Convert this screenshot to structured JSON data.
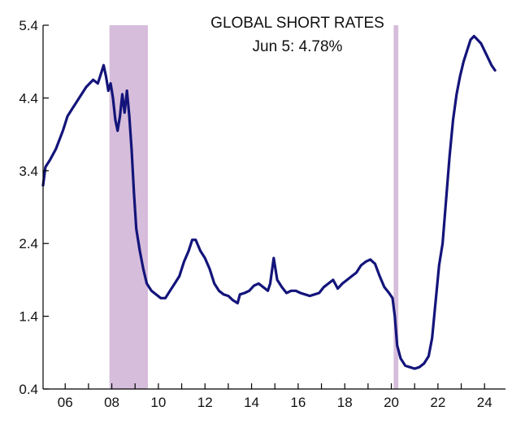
{
  "chart_data": {
    "type": "line",
    "title": "GLOBAL SHORT RATES",
    "subtitle": "Jun 5: 4.78%",
    "xlabel": "",
    "ylabel": "",
    "x_tick_labels": [
      "06",
      "08",
      "10",
      "12",
      "14",
      "16",
      "18",
      "20",
      "22",
      "24"
    ],
    "x_tick_values": [
      2006,
      2008,
      2010,
      2012,
      2014,
      2016,
      2018,
      2020,
      2022,
      2024
    ],
    "y_tick_labels": [
      "0.4",
      "1.4",
      "2.4",
      "3.4",
      "4.4",
      "5.4"
    ],
    "y_tick_values": [
      0.4,
      1.4,
      2.4,
      3.4,
      4.4,
      5.4
    ],
    "xlim": [
      2005.05,
      2024.9
    ],
    "ylim": [
      0.4,
      5.4
    ],
    "grid": false,
    "legend": "none",
    "line_color": "#13147a",
    "recession_color": "#d6bddb",
    "recessions": [
      {
        "start": 2007.9,
        "end": 2009.55
      },
      {
        "start": 2020.1,
        "end": 2020.3
      }
    ],
    "series": [
      {
        "values": [
          [
            2005.05,
            3.2
          ],
          [
            2005.15,
            3.45
          ],
          [
            2005.35,
            3.55
          ],
          [
            2005.6,
            3.7
          ],
          [
            2005.9,
            3.95
          ],
          [
            2006.1,
            4.15
          ],
          [
            2006.3,
            4.25
          ],
          [
            2006.6,
            4.4
          ],
          [
            2006.9,
            4.55
          ],
          [
            2007.2,
            4.65
          ],
          [
            2007.4,
            4.6
          ],
          [
            2007.55,
            4.75
          ],
          [
            2007.65,
            4.85
          ],
          [
            2007.75,
            4.7
          ],
          [
            2007.85,
            4.5
          ],
          [
            2007.95,
            4.6
          ],
          [
            2008.05,
            4.4
          ],
          [
            2008.15,
            4.1
          ],
          [
            2008.25,
            3.95
          ],
          [
            2008.35,
            4.15
          ],
          [
            2008.45,
            4.45
          ],
          [
            2008.55,
            4.2
          ],
          [
            2008.65,
            4.5
          ],
          [
            2008.75,
            4.15
          ],
          [
            2008.85,
            3.7
          ],
          [
            2008.95,
            3.1
          ],
          [
            2009.05,
            2.6
          ],
          [
            2009.2,
            2.3
          ],
          [
            2009.35,
            2.05
          ],
          [
            2009.5,
            1.85
          ],
          [
            2009.7,
            1.75
          ],
          [
            2009.9,
            1.7
          ],
          [
            2010.1,
            1.65
          ],
          [
            2010.3,
            1.65
          ],
          [
            2010.5,
            1.75
          ],
          [
            2010.7,
            1.85
          ],
          [
            2010.9,
            1.95
          ],
          [
            2011.1,
            2.15
          ],
          [
            2011.3,
            2.3
          ],
          [
            2011.45,
            2.45
          ],
          [
            2011.6,
            2.45
          ],
          [
            2011.8,
            2.3
          ],
          [
            2012.0,
            2.2
          ],
          [
            2012.2,
            2.05
          ],
          [
            2012.4,
            1.85
          ],
          [
            2012.6,
            1.75
          ],
          [
            2012.8,
            1.7
          ],
          [
            2013.0,
            1.68
          ],
          [
            2013.2,
            1.62
          ],
          [
            2013.4,
            1.58
          ],
          [
            2013.5,
            1.7
          ],
          [
            2013.7,
            1.72
          ],
          [
            2013.9,
            1.75
          ],
          [
            2014.1,
            1.82
          ],
          [
            2014.3,
            1.85
          ],
          [
            2014.5,
            1.8
          ],
          [
            2014.7,
            1.75
          ],
          [
            2014.8,
            1.85
          ],
          [
            2014.95,
            2.2
          ],
          [
            2015.1,
            1.9
          ],
          [
            2015.3,
            1.8
          ],
          [
            2015.5,
            1.72
          ],
          [
            2015.7,
            1.75
          ],
          [
            2015.9,
            1.75
          ],
          [
            2016.1,
            1.72
          ],
          [
            2016.3,
            1.7
          ],
          [
            2016.5,
            1.68
          ],
          [
            2016.7,
            1.7
          ],
          [
            2016.9,
            1.72
          ],
          [
            2017.1,
            1.8
          ],
          [
            2017.3,
            1.85
          ],
          [
            2017.5,
            1.9
          ],
          [
            2017.7,
            1.78
          ],
          [
            2017.9,
            1.85
          ],
          [
            2018.1,
            1.9
          ],
          [
            2018.3,
            1.95
          ],
          [
            2018.5,
            2.0
          ],
          [
            2018.7,
            2.1
          ],
          [
            2018.9,
            2.15
          ],
          [
            2019.1,
            2.18
          ],
          [
            2019.3,
            2.12
          ],
          [
            2019.5,
            1.95
          ],
          [
            2019.7,
            1.8
          ],
          [
            2019.9,
            1.72
          ],
          [
            2020.05,
            1.65
          ],
          [
            2020.15,
            1.4
          ],
          [
            2020.25,
            1.0
          ],
          [
            2020.4,
            0.82
          ],
          [
            2020.6,
            0.72
          ],
          [
            2020.8,
            0.7
          ],
          [
            2021.0,
            0.68
          ],
          [
            2021.2,
            0.7
          ],
          [
            2021.4,
            0.75
          ],
          [
            2021.6,
            0.85
          ],
          [
            2021.75,
            1.1
          ],
          [
            2021.9,
            1.6
          ],
          [
            2022.05,
            2.1
          ],
          [
            2022.2,
            2.4
          ],
          [
            2022.35,
            3.0
          ],
          [
            2022.5,
            3.6
          ],
          [
            2022.65,
            4.1
          ],
          [
            2022.8,
            4.45
          ],
          [
            2022.95,
            4.7
          ],
          [
            2023.1,
            4.9
          ],
          [
            2023.25,
            5.05
          ],
          [
            2023.4,
            5.2
          ],
          [
            2023.55,
            5.25
          ],
          [
            2023.7,
            5.2
          ],
          [
            2023.85,
            5.15
          ],
          [
            2024.0,
            5.05
          ],
          [
            2024.15,
            4.95
          ],
          [
            2024.3,
            4.85
          ],
          [
            2024.45,
            4.78
          ]
        ]
      }
    ]
  }
}
